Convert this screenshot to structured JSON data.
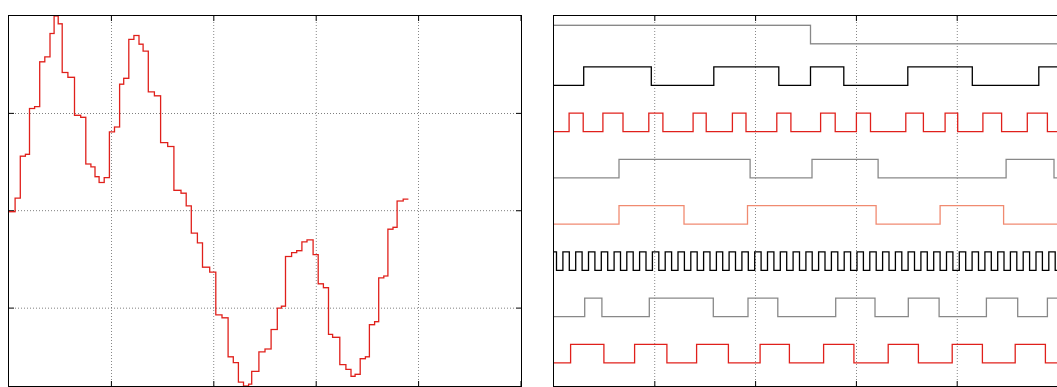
{
  "chart_data": [
    {
      "type": "line",
      "title": "",
      "xlabel": "",
      "ylabel": "",
      "grid": true,
      "xlim": [
        0,
        1
      ],
      "ylim": [
        -1.8,
        2.0
      ],
      "x_gridlines": [
        0.2,
        0.4,
        0.6,
        0.8,
        1.0
      ],
      "y_gridlines": [
        -1,
        0,
        1
      ],
      "series": [
        {
          "color": "#e0201b",
          "step": true,
          "points": [
            [
              0.0,
              -0.01
            ],
            [
              0.012,
              0.13
            ],
            [
              0.022,
              0.56
            ],
            [
              0.032,
              0.58
            ],
            [
              0.04,
              1.05
            ],
            [
              0.05,
              1.07
            ],
            [
              0.06,
              1.53
            ],
            [
              0.07,
              1.58
            ],
            [
              0.08,
              1.82
            ],
            [
              0.088,
              2.0
            ],
            [
              0.096,
              1.92
            ],
            [
              0.104,
              1.42
            ],
            [
              0.115,
              1.37
            ],
            [
              0.128,
              0.98
            ],
            [
              0.14,
              0.96
            ],
            [
              0.15,
              0.48
            ],
            [
              0.16,
              0.45
            ],
            [
              0.168,
              0.35
            ],
            [
              0.176,
              0.29
            ],
            [
              0.186,
              0.34
            ],
            [
              0.196,
              0.81
            ],
            [
              0.206,
              0.86
            ],
            [
              0.216,
              1.3
            ],
            [
              0.224,
              1.36
            ],
            [
              0.234,
              1.76
            ],
            [
              0.244,
              1.8
            ],
            [
              0.254,
              1.71
            ],
            [
              0.262,
              1.64
            ],
            [
              0.272,
              1.22
            ],
            [
              0.284,
              1.18
            ],
            [
              0.296,
              0.7
            ],
            [
              0.31,
              0.66
            ],
            [
              0.322,
              0.21
            ],
            [
              0.336,
              0.18
            ],
            [
              0.346,
              0.05
            ],
            [
              0.356,
              -0.23
            ],
            [
              0.368,
              -0.33
            ],
            [
              0.378,
              -0.58
            ],
            [
              0.392,
              -0.63
            ],
            [
              0.404,
              -1.07
            ],
            [
              0.416,
              -1.1
            ],
            [
              0.428,
              -1.5
            ],
            [
              0.438,
              -1.56
            ],
            [
              0.448,
              -1.76
            ],
            [
              0.458,
              -1.8
            ],
            [
              0.468,
              -1.78
            ],
            [
              0.474,
              -1.65
            ],
            [
              0.488,
              -1.45
            ],
            [
              0.5,
              -1.42
            ],
            [
              0.512,
              -1.22
            ],
            [
              0.524,
              -1.0
            ],
            [
              0.532,
              -0.98
            ],
            [
              0.54,
              -0.47
            ],
            [
              0.552,
              -0.43
            ],
            [
              0.562,
              -0.41
            ],
            [
              0.572,
              -0.32
            ],
            [
              0.582,
              -0.3
            ],
            [
              0.594,
              -0.45
            ],
            [
              0.604,
              -0.75
            ],
            [
              0.614,
              -0.79
            ],
            [
              0.624,
              -1.27
            ],
            [
              0.632,
              -1.3
            ],
            [
              0.646,
              -1.58
            ],
            [
              0.658,
              -1.63
            ],
            [
              0.668,
              -1.7
            ],
            [
              0.676,
              -1.68
            ],
            [
              0.686,
              -1.52
            ],
            [
              0.696,
              -1.5
            ],
            [
              0.704,
              -1.17
            ],
            [
              0.714,
              -1.14
            ],
            [
              0.722,
              -0.69
            ],
            [
              0.732,
              -0.67
            ],
            [
              0.74,
              -0.19
            ],
            [
              0.75,
              -0.17
            ],
            [
              0.758,
              0.1
            ],
            [
              0.77,
              0.12
            ],
            [
              0.78,
              0.12
            ]
          ]
        }
      ]
    },
    {
      "type": "line",
      "title": "",
      "xlabel": "",
      "ylabel": "",
      "grid": true,
      "xlim": [
        0,
        1
      ],
      "ylim": [
        0,
        8
      ],
      "x_gridlines": [
        0.2,
        0.4,
        0.6,
        0.8,
        1.0
      ],
      "series": [
        {
          "color": "#888888",
          "low": 7.4,
          "high": 7.8,
          "transitions": [
            0.509
          ],
          "start": "high"
        },
        {
          "color": "#000000",
          "low": 6.5,
          "high": 6.9,
          "transitions": [
            0.059,
            0.193,
            0.317,
            0.446,
            0.509,
            0.575,
            0.702,
            0.83,
            0.962
          ],
          "start": "low"
        },
        {
          "color": "#e0201b",
          "low": 5.5,
          "high": 5.9,
          "transitions": [
            0.03,
            0.058,
            0.097,
            0.137,
            0.188,
            0.216,
            0.276,
            0.302,
            0.354,
            0.381,
            0.442,
            0.47,
            0.529,
            0.558,
            0.6,
            0.628,
            0.698,
            0.733,
            0.776,
            0.801,
            0.851,
            0.888,
            0.939,
            0.979,
            1.0
          ],
          "start": "low"
        },
        {
          "color": "#888888",
          "low": 4.5,
          "high": 4.9,
          "transitions": [
            0.129,
            0.389,
            0.512,
            0.643,
            0.897,
            0.992
          ],
          "start": "low"
        },
        {
          "color": "#f08a70",
          "low": 3.5,
          "high": 3.9,
          "transitions": [
            0.129,
            0.258,
            0.384,
            0.639,
            0.766,
            0.892
          ],
          "start": "low"
        },
        {
          "color": "#000000",
          "low": 2.5,
          "high": 2.9,
          "period": 0.02537,
          "duty": 0.5,
          "phase": 0.005,
          "start": "high"
        },
        {
          "color": "#888888",
          "low": 1.5,
          "high": 1.9,
          "transitions": [
            0.061,
            0.095,
            0.189,
            0.316,
            0.385,
            0.444,
            0.559,
            0.637,
            0.703,
            0.764,
            0.858,
            0.92,
            0.979
          ],
          "start": "low"
        },
        {
          "color": "#e0201b",
          "low": 0.5,
          "high": 0.9,
          "transitions": [
            0.033,
            0.099,
            0.16,
            0.224,
            0.283,
            0.346,
            0.409,
            0.467,
            0.535,
            0.595,
            0.663,
            0.723,
            0.79,
            0.85,
            0.915,
            0.975
          ],
          "start": "low"
        }
      ]
    }
  ]
}
